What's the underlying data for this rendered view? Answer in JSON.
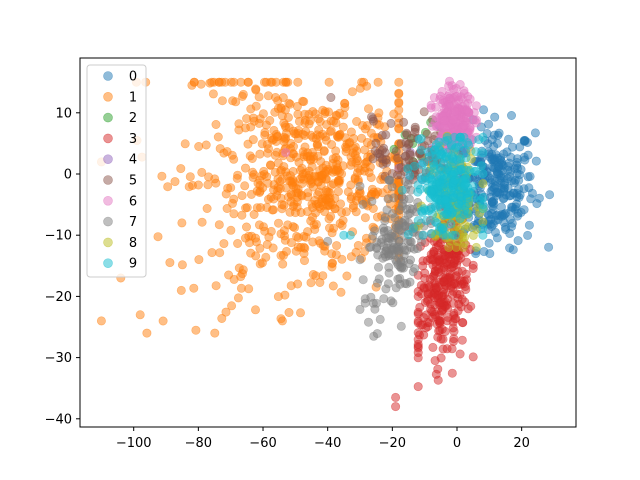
{
  "chart_data": {
    "type": "scatter",
    "title": "",
    "xlabel": "",
    "ylabel": "",
    "xlim": [
      -116.6,
      36.8
    ],
    "ylim": [
      -41.3,
      18.9
    ],
    "grid": false,
    "legend_position": "upper left",
    "x_ticks": [
      -100,
      -80,
      -60,
      -40,
      -20,
      0,
      20
    ],
    "x_tick_labels": [
      "−100",
      "−80",
      "−60",
      "−40",
      "−20",
      "0",
      "20"
    ],
    "y_ticks": [
      10,
      0,
      -10,
      -20,
      -30,
      -40
    ],
    "y_tick_labels": [
      "10",
      "0",
      "−10",
      "−20",
      "−30",
      "−40"
    ],
    "marker_alpha": 0.5,
    "series": [
      {
        "name": "0",
        "color": "#1f77b4",
        "center": [
          12,
          -2
        ],
        "spread": [
          6,
          5
        ],
        "count": 260,
        "range_x": [
          2,
          30
        ],
        "range_y": [
          -13,
          11
        ]
      },
      {
        "name": "1",
        "color": "#ff7f0e",
        "center": [
          -45,
          -1
        ],
        "spread": [
          18,
          7
        ],
        "count": 700,
        "range_x": [
          -110,
          -18
        ],
        "range_y": [
          -26,
          15
        ]
      },
      {
        "name": "2",
        "color": "#2ca02c",
        "center": [
          -12,
          5
        ],
        "spread": [
          5,
          3
        ],
        "count": 12,
        "range_x": [
          -22,
          2
        ],
        "range_y": [
          -2,
          10
        ]
      },
      {
        "name": "3",
        "color": "#d62728",
        "center": [
          -2,
          -18
        ],
        "spread": [
          5,
          6
        ],
        "count": 300,
        "range_x": [
          -12,
          5
        ],
        "range_y": [
          -38,
          -5
        ]
      },
      {
        "name": "4",
        "color": "#9467bd",
        "center": [
          -8,
          2
        ],
        "spread": [
          6,
          3
        ],
        "count": 25,
        "range_x": [
          -18,
          10
        ],
        "range_y": [
          -5,
          8
        ]
      },
      {
        "name": "5",
        "color": "#8c564b",
        "center": [
          -14,
          3
        ],
        "spread": [
          6,
          3
        ],
        "count": 90,
        "range_x": [
          -32,
          2
        ],
        "range_y": [
          -8,
          12
        ]
      },
      {
        "name": "6",
        "color": "#e377c2",
        "center": [
          -1,
          9
        ],
        "spread": [
          3,
          2.5
        ],
        "count": 220,
        "range_x": [
          -8,
          6
        ],
        "range_y": [
          2,
          16
        ]
      },
      {
        "name": "7",
        "color": "#7f7f7f",
        "center": [
          -19,
          -12
        ],
        "spread": [
          5,
          5
        ],
        "count": 160,
        "range_x": [
          -30,
          -8
        ],
        "range_y": [
          -27,
          -1
        ]
      },
      {
        "name": "8",
        "color": "#bcbd22",
        "center": [
          -1,
          -4
        ],
        "spread": [
          4,
          4
        ],
        "count": 120,
        "range_x": [
          -14,
          8
        ],
        "range_y": [
          -12,
          9
        ]
      },
      {
        "name": "9",
        "color": "#17becf",
        "center": [
          -3,
          -2
        ],
        "spread": [
          5,
          4
        ],
        "count": 260,
        "range_x": [
          -20,
          8
        ],
        "range_y": [
          -10,
          6
        ]
      }
    ],
    "outliers": [
      {
        "series": "6",
        "x": -53,
        "y": 3.5
      },
      {
        "series": "5",
        "x": -39,
        "y": 12.5
      },
      {
        "series": "5",
        "x": -26,
        "y": 9
      },
      {
        "series": "9",
        "x": -33,
        "y": -10
      },
      {
        "series": "9",
        "x": -35,
        "y": -10
      },
      {
        "series": "7",
        "x": -30,
        "y": -2
      },
      {
        "series": "7",
        "x": -40,
        "y": -11
      },
      {
        "series": "3",
        "x": -19,
        "y": -36.5
      },
      {
        "series": "3",
        "x": -19,
        "y": -38
      },
      {
        "series": "1",
        "x": -110,
        "y": -24
      },
      {
        "series": "1",
        "x": -98,
        "y": -23
      },
      {
        "series": "1",
        "x": -104,
        "y": -17
      },
      {
        "series": "1",
        "x": -82,
        "y": 14.5
      },
      {
        "series": "1",
        "x": -54,
        "y": -24
      }
    ]
  },
  "legend": {
    "items": [
      {
        "label": "0",
        "color": "#1f77b4"
      },
      {
        "label": "1",
        "color": "#ff7f0e"
      },
      {
        "label": "2",
        "color": "#2ca02c"
      },
      {
        "label": "3",
        "color": "#d62728"
      },
      {
        "label": "4",
        "color": "#9467bd"
      },
      {
        "label": "5",
        "color": "#8c564b"
      },
      {
        "label": "6",
        "color": "#e377c2"
      },
      {
        "label": "7",
        "color": "#7f7f7f"
      },
      {
        "label": "8",
        "color": "#bcbd22"
      },
      {
        "label": "9",
        "color": "#17becf"
      }
    ]
  }
}
